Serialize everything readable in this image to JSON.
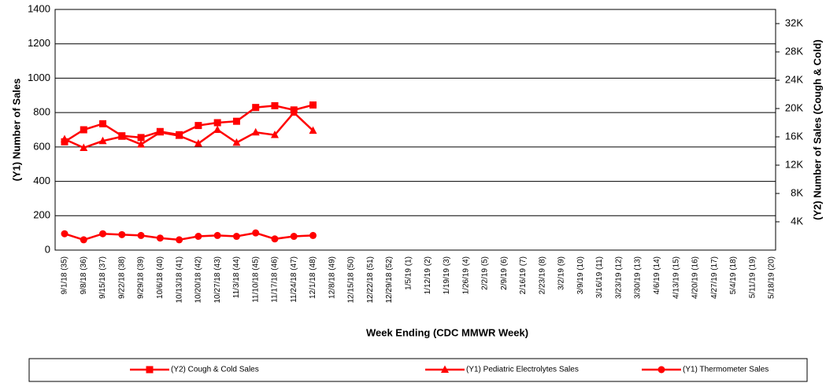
{
  "chart_data": {
    "type": "line",
    "x_label": "Week Ending (CDC MMWR Week)",
    "y_label": "(Y1) Number of Sales",
    "y2_label": "(Y2) Number of Sales (Cough & Cold)",
    "categories": [
      "9/1/18 (35)",
      "9/8/18 (36)",
      "9/15/18 (37)",
      "9/22/18 (38)",
      "9/29/18 (39)",
      "10/6/18 (40)",
      "10/13/18 (41)",
      "10/20/18 (42)",
      "10/27/18 (43)",
      "11/3/18 (44)",
      "11/10/18 (45)",
      "11/17/18 (46)",
      "11/24/18 (47)",
      "12/1/18 (48)",
      "12/8/18 (49)",
      "12/15/18 (50)",
      "12/22/18 (51)",
      "12/29/18 (52)",
      "1/5/19 (1)",
      "1/12/19 (2)",
      "1/19/19 (3)",
      "1/26/19 (4)",
      "2/2/19 (5)",
      "2/9/19 (6)",
      "2/16/19 (7)",
      "2/23/19 (8)",
      "3/2/19 (9)",
      "3/9/19 (10)",
      "3/16/19 (11)",
      "3/23/19 (12)",
      "3/30/19 (13)",
      "4/6/19 (14)",
      "4/13/19 (15)",
      "4/20/19 (16)",
      "4/27/19 (17)",
      "5/4/19 (18)",
      "5/11/19 (19)",
      "5/18/19 (20)"
    ],
    "ylim": [
      0,
      1400
    ],
    "yticks": [
      0,
      200,
      400,
      600,
      800,
      1000,
      1200,
      1400
    ],
    "y2lim": [
      0,
      34000
    ],
    "y2ticks": [
      {
        "value": 4000,
        "label": "4K"
      },
      {
        "value": 8000,
        "label": "8K"
      },
      {
        "value": 12000,
        "label": "12K"
      },
      {
        "value": 16000,
        "label": "16K"
      },
      {
        "value": 20000,
        "label": "20K"
      },
      {
        "value": 24000,
        "label": "24K"
      },
      {
        "value": 28000,
        "label": "28K"
      },
      {
        "value": 32000,
        "label": "32K"
      }
    ],
    "grid": true,
    "legend": "bottom",
    "series": [
      {
        "name": "(Y2) Cough & Cold Sales",
        "color": "#ff0000",
        "marker": "square",
        "axis": "y2",
        "values": [
          15300,
          17000,
          17850,
          16150,
          15900,
          16750,
          16300,
          17600,
          18000,
          18200,
          20150,
          20400,
          19800,
          20500,
          null,
          null,
          null,
          null,
          null,
          null,
          null,
          null,
          null,
          null,
          null,
          null,
          null,
          null,
          null,
          null,
          null,
          null,
          null,
          null,
          null,
          null,
          null,
          null
        ]
      },
      {
        "name": "(Y1) Pediatric Electrolytes Sales",
        "color": "#ff0000",
        "marker": "triangle",
        "values": [
          645,
          595,
          635,
          660,
          615,
          685,
          665,
          620,
          700,
          625,
          685,
          670,
          800,
          695,
          null,
          null,
          null,
          null,
          null,
          null,
          null,
          null,
          null,
          null,
          null,
          null,
          null,
          null,
          null,
          null,
          null,
          null,
          null,
          null,
          null,
          null,
          null,
          null
        ]
      },
      {
        "name": "(Y1) Thermometer Sales",
        "color": "#ff0000",
        "marker": "circle",
        "values": [
          95,
          60,
          95,
          90,
          85,
          70,
          60,
          80,
          85,
          80,
          100,
          65,
          80,
          85,
          null,
          null,
          null,
          null,
          null,
          null,
          null,
          null,
          null,
          null,
          null,
          null,
          null,
          null,
          null,
          null,
          null,
          null,
          null,
          null,
          null,
          null,
          null,
          null
        ]
      }
    ]
  }
}
